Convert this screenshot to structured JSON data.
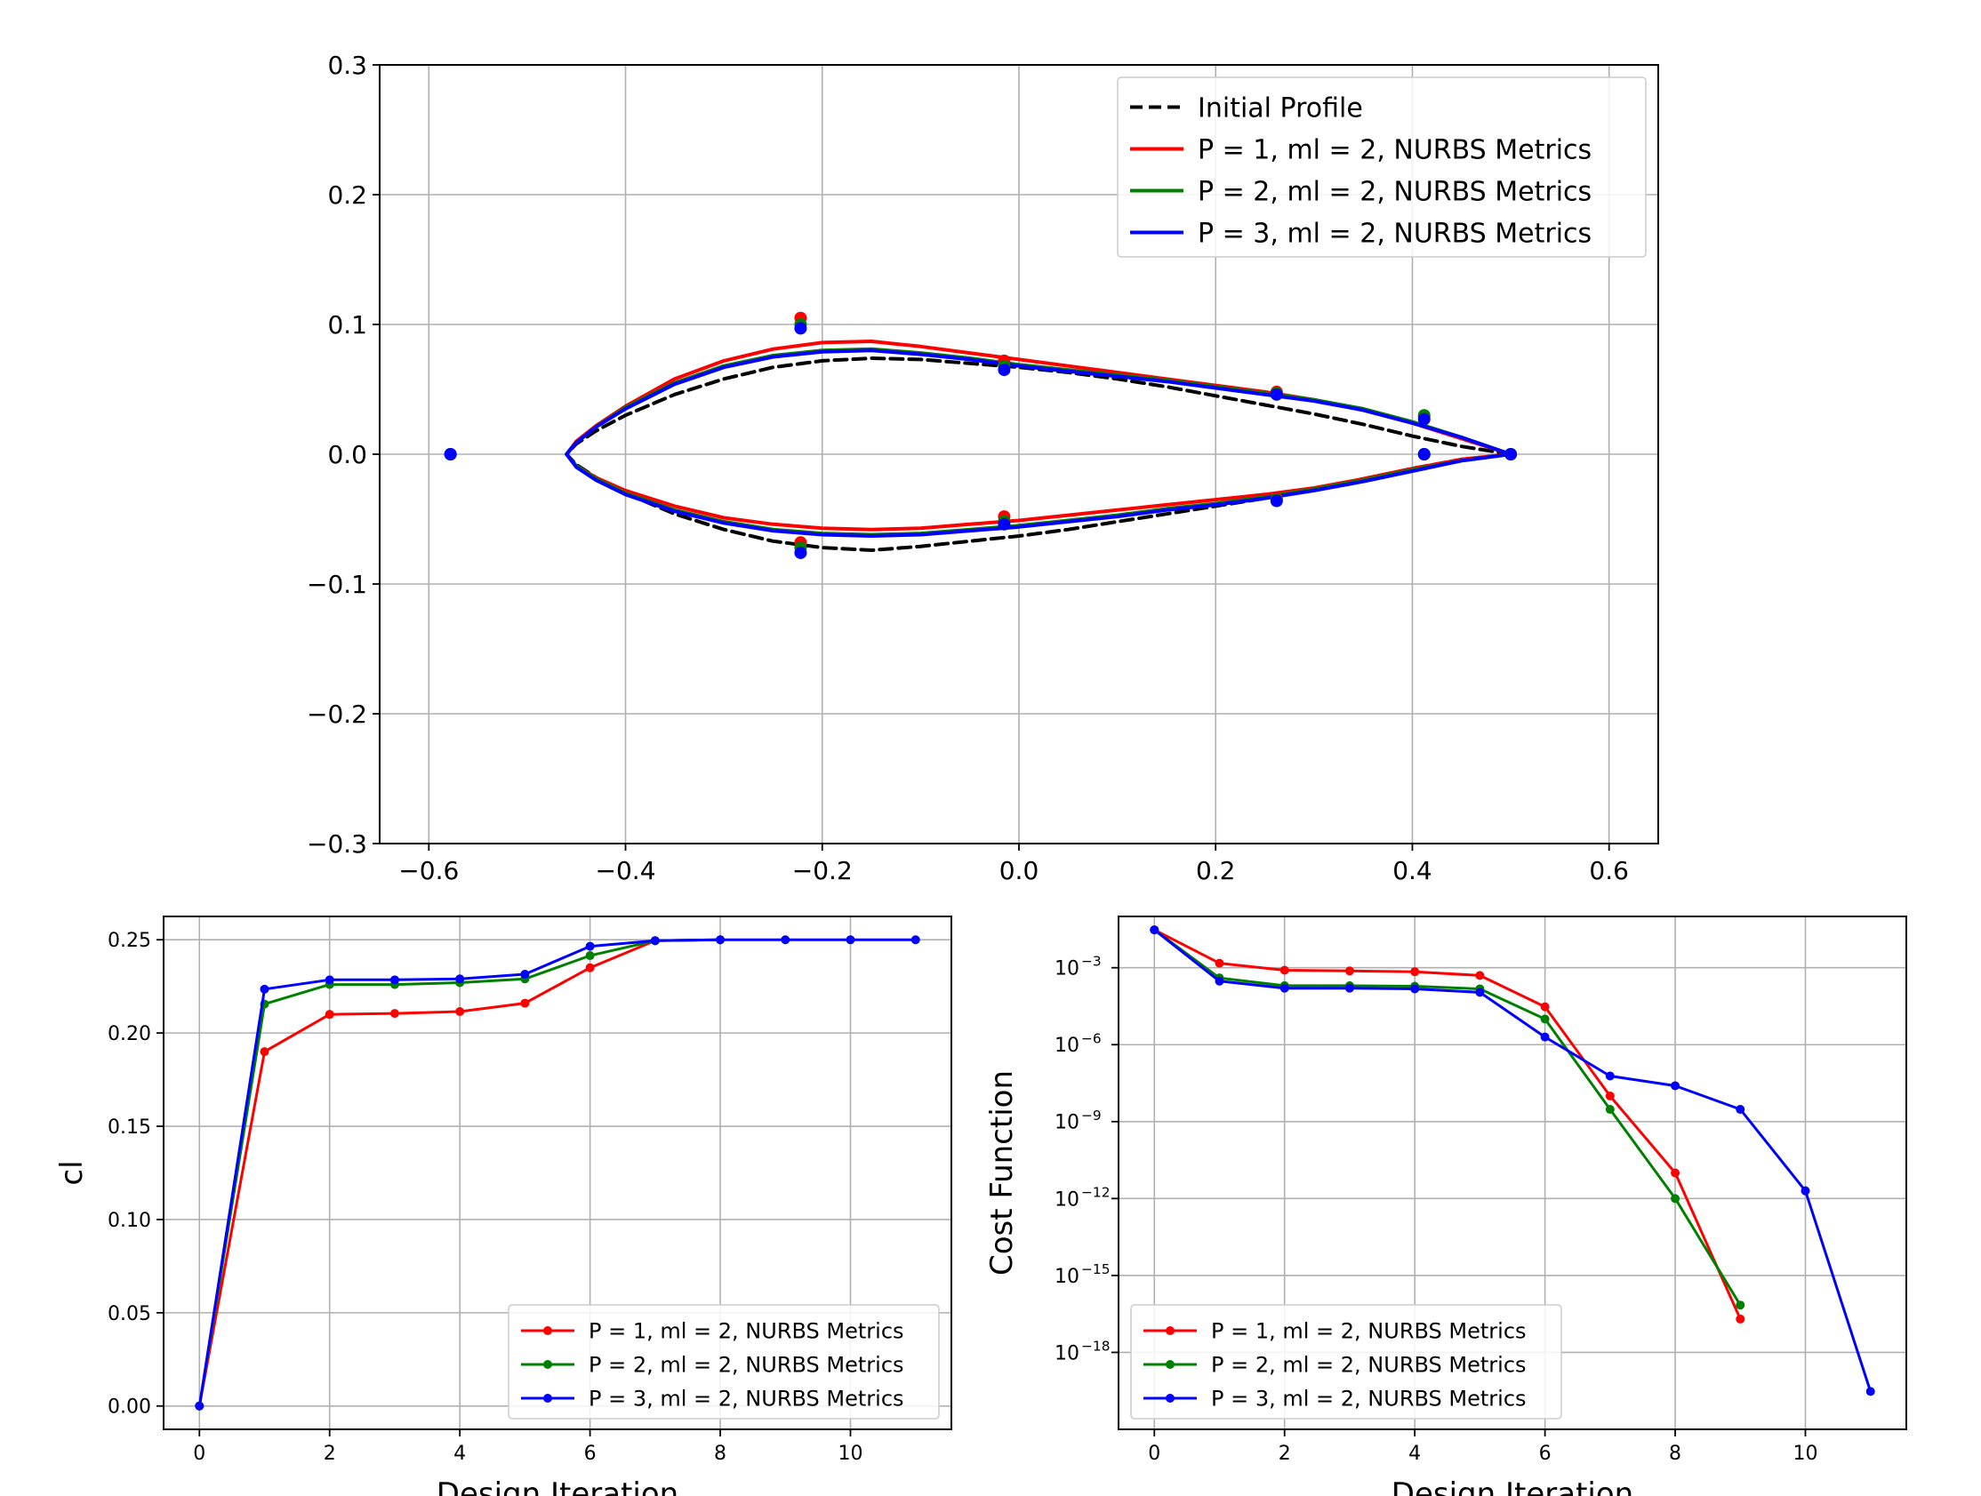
{
  "chart_data": [
    {
      "id": "airfoil",
      "type": "line",
      "title": "",
      "xlabel": "",
      "ylabel": "",
      "xlim": [
        -0.65,
        0.65
      ],
      "ylim": [
        -0.3,
        0.3
      ],
      "xticks": [
        -0.6,
        -0.4,
        -0.2,
        0.0,
        0.2,
        0.4,
        0.6
      ],
      "xtick_labels": [
        "−0.6",
        "−0.4",
        "−0.2",
        "0.0",
        "0.2",
        "0.4",
        "0.6"
      ],
      "yticks": [
        -0.3,
        -0.2,
        -0.1,
        0.0,
        0.1,
        0.2,
        0.3
      ],
      "ytick_labels": [
        "−0.3",
        "−0.2",
        "−0.1",
        "0.0",
        "0.1",
        "0.2",
        "0.3"
      ],
      "grid": true,
      "legend_position": "top-right",
      "series": [
        {
          "name": "Initial Profile",
          "color": "#000000",
          "dash": true,
          "x": [
            0.5,
            0.45,
            0.4,
            0.35,
            0.3,
            0.25,
            0.2,
            0.15,
            0.1,
            0.05,
            0.0,
            -0.05,
            -0.1,
            -0.15,
            -0.2,
            -0.25,
            -0.3,
            -0.35,
            -0.4,
            -0.43,
            -0.45,
            -0.46,
            -0.45,
            -0.43,
            -0.4,
            -0.35,
            -0.3,
            -0.25,
            -0.2,
            -0.15,
            -0.1,
            -0.05,
            0.0,
            0.05,
            0.1,
            0.15,
            0.2,
            0.25,
            0.3,
            0.35,
            0.4,
            0.45,
            0.5
          ],
          "y": [
            0.0,
            0.006,
            0.014,
            0.023,
            0.031,
            0.038,
            0.045,
            0.052,
            0.058,
            0.063,
            0.067,
            0.07,
            0.073,
            0.074,
            0.072,
            0.067,
            0.058,
            0.046,
            0.03,
            0.018,
            0.008,
            0.0,
            -0.008,
            -0.018,
            -0.03,
            -0.046,
            -0.058,
            -0.067,
            -0.072,
            -0.074,
            -0.071,
            -0.067,
            -0.063,
            -0.058,
            -0.052,
            -0.046,
            -0.04,
            -0.034,
            -0.027,
            -0.019,
            -0.011,
            -0.004,
            0.0
          ]
        },
        {
          "name": "P = 1, ml = 2, NURBS Metrics",
          "color": "#ff0000",
          "dash": false,
          "x": [
            0.5,
            0.45,
            0.4,
            0.35,
            0.3,
            0.25,
            0.2,
            0.15,
            0.1,
            0.05,
            0.0,
            -0.05,
            -0.1,
            -0.15,
            -0.2,
            -0.25,
            -0.3,
            -0.35,
            -0.4,
            -0.43,
            -0.45,
            -0.46,
            -0.45,
            -0.43,
            -0.4,
            -0.35,
            -0.3,
            -0.25,
            -0.2,
            -0.15,
            -0.1,
            -0.05,
            0.0,
            0.05,
            0.1,
            0.15,
            0.2,
            0.25,
            0.3,
            0.35,
            0.4,
            0.45,
            0.5
          ],
          "y": [
            0.0,
            0.012,
            0.024,
            0.034,
            0.042,
            0.048,
            0.053,
            0.058,
            0.063,
            0.068,
            0.073,
            0.078,
            0.083,
            0.087,
            0.086,
            0.081,
            0.072,
            0.058,
            0.037,
            0.022,
            0.01,
            0.0,
            -0.009,
            -0.018,
            -0.028,
            -0.04,
            -0.049,
            -0.054,
            -0.057,
            -0.058,
            -0.057,
            -0.054,
            -0.051,
            -0.047,
            -0.043,
            -0.039,
            -0.035,
            -0.031,
            -0.026,
            -0.019,
            -0.011,
            -0.004,
            0.0
          ]
        },
        {
          "name": "P = 2, ml = 2, NURBS Metrics",
          "color": "#008000",
          "dash": false,
          "x": [
            0.5,
            0.45,
            0.4,
            0.35,
            0.3,
            0.25,
            0.2,
            0.15,
            0.1,
            0.05,
            0.0,
            -0.05,
            -0.1,
            -0.15,
            -0.2,
            -0.25,
            -0.3,
            -0.35,
            -0.4,
            -0.43,
            -0.45,
            -0.46,
            -0.45,
            -0.43,
            -0.4,
            -0.35,
            -0.3,
            -0.25,
            -0.2,
            -0.15,
            -0.1,
            -0.05,
            0.0,
            0.05,
            0.1,
            0.15,
            0.2,
            0.25,
            0.3,
            0.35,
            0.4,
            0.45,
            0.5
          ],
          "y": [
            0.0,
            0.013,
            0.025,
            0.035,
            0.042,
            0.047,
            0.052,
            0.057,
            0.061,
            0.065,
            0.069,
            0.074,
            0.078,
            0.081,
            0.08,
            0.076,
            0.068,
            0.055,
            0.036,
            0.021,
            0.009,
            0.0,
            -0.009,
            -0.019,
            -0.03,
            -0.043,
            -0.052,
            -0.058,
            -0.061,
            -0.062,
            -0.061,
            -0.058,
            -0.055,
            -0.051,
            -0.047,
            -0.042,
            -0.038,
            -0.033,
            -0.027,
            -0.02,
            -0.012,
            -0.005,
            0.0
          ]
        },
        {
          "name": "P = 3, ml = 2, NURBS Metrics",
          "color": "#0000ff",
          "dash": false,
          "x": [
            0.5,
            0.45,
            0.4,
            0.35,
            0.3,
            0.25,
            0.2,
            0.15,
            0.1,
            0.05,
            0.0,
            -0.05,
            -0.1,
            -0.15,
            -0.2,
            -0.25,
            -0.3,
            -0.35,
            -0.4,
            -0.43,
            -0.45,
            -0.46,
            -0.45,
            -0.43,
            -0.4,
            -0.35,
            -0.3,
            -0.25,
            -0.2,
            -0.15,
            -0.1,
            -0.05,
            0.0,
            0.05,
            0.1,
            0.15,
            0.2,
            0.25,
            0.3,
            0.35,
            0.4,
            0.45,
            0.5
          ],
          "y": [
            0.0,
            0.013,
            0.024,
            0.034,
            0.041,
            0.046,
            0.051,
            0.056,
            0.06,
            0.064,
            0.068,
            0.073,
            0.077,
            0.08,
            0.079,
            0.075,
            0.067,
            0.054,
            0.035,
            0.021,
            0.009,
            0.0,
            -0.01,
            -0.02,
            -0.031,
            -0.044,
            -0.053,
            -0.059,
            -0.062,
            -0.063,
            -0.062,
            -0.059,
            -0.056,
            -0.052,
            -0.048,
            -0.043,
            -0.039,
            -0.034,
            -0.028,
            -0.021,
            -0.013,
            -0.005,
            0.0
          ]
        }
      ],
      "control_points": [
        {
          "name": "P = 1, ml = 2, NURBS Metrics",
          "color": "#ff0000",
          "x": [
            -0.578,
            -0.222,
            -0.222,
            -0.015,
            -0.015,
            0.262,
            0.262,
            0.412,
            0.412,
            0.5
          ],
          "y": [
            0.0,
            0.105,
            -0.068,
            0.072,
            -0.048,
            0.048,
            -0.034,
            0.029,
            0.0,
            0.0
          ]
        },
        {
          "name": "P = 2, ml = 2, NURBS Metrics",
          "color": "#008000",
          "x": [
            -0.578,
            -0.222,
            -0.222,
            -0.015,
            -0.015,
            0.262,
            0.262,
            0.412,
            0.412,
            0.5
          ],
          "y": [
            0.0,
            0.1,
            -0.072,
            0.068,
            -0.052,
            0.047,
            -0.035,
            0.03,
            0.0,
            0.0
          ]
        },
        {
          "name": "P = 3, ml = 2, NURBS Metrics",
          "color": "#0000ff",
          "x": [
            -0.578,
            -0.222,
            -0.222,
            -0.015,
            -0.015,
            0.262,
            0.262,
            0.412,
            0.412,
            0.5
          ],
          "y": [
            0.0,
            0.097,
            -0.076,
            0.065,
            -0.054,
            0.046,
            -0.036,
            0.027,
            0.0,
            0.0
          ]
        }
      ]
    },
    {
      "id": "cl",
      "type": "line",
      "title": "",
      "xlabel": "Design Iteration",
      "ylabel": "cl",
      "xlim": [
        -0.55,
        11.55
      ],
      "ylim": [
        -0.0125,
        0.2625
      ],
      "xticks": [
        0,
        2,
        4,
        6,
        8,
        10
      ],
      "xtick_labels": [
        "0",
        "2",
        "4",
        "6",
        "8",
        "10"
      ],
      "yticks": [
        0.0,
        0.05,
        0.1,
        0.15,
        0.2,
        0.25
      ],
      "ytick_labels": [
        "0.00",
        "0.05",
        "0.10",
        "0.15",
        "0.20",
        "0.25"
      ],
      "grid": true,
      "legend_position": "bottom-right",
      "series": [
        {
          "name": "P = 1, ml = 2, NURBS Metrics",
          "color": "#ff0000",
          "x": [
            0,
            1,
            2,
            3,
            4,
            5,
            6,
            7,
            8
          ],
          "y": [
            0.0,
            0.19,
            0.21,
            0.2105,
            0.2115,
            0.216,
            0.235,
            0.2495,
            0.25
          ]
        },
        {
          "name": "P = 2, ml = 2, NURBS Metrics",
          "color": "#008000",
          "x": [
            0,
            1,
            2,
            3,
            4,
            5,
            6,
            7,
            8
          ],
          "y": [
            0.0,
            0.2155,
            0.226,
            0.226,
            0.227,
            0.229,
            0.2415,
            0.2495,
            0.25
          ]
        },
        {
          "name": "P = 3, ml = 2, NURBS Metrics",
          "color": "#0000ff",
          "x": [
            0,
            1,
            2,
            3,
            4,
            5,
            6,
            7,
            8,
            9,
            10,
            11
          ],
          "y": [
            0.0,
            0.2235,
            0.2285,
            0.2285,
            0.229,
            0.2315,
            0.2465,
            0.2495,
            0.25,
            0.25,
            0.25,
            0.25
          ]
        }
      ]
    },
    {
      "id": "cost",
      "type": "line",
      "title": "",
      "xlabel": "Design Iteration",
      "ylabel": "Cost Function",
      "log_y": true,
      "xlim": [
        -0.55,
        11.55
      ],
      "ylim": [
        1e-21,
        0.1
      ],
      "xticks": [
        0,
        2,
        4,
        6,
        8,
        10
      ],
      "xtick_labels": [
        "0",
        "2",
        "4",
        "6",
        "8",
        "10"
      ],
      "yticks": [
        1e-18,
        1e-15,
        1e-12,
        1e-09,
        1e-06,
        0.001
      ],
      "ytick_labels": [
        "10",
        "10",
        "10",
        "10",
        "10",
        "10"
      ],
      "ytick_exponents": [
        "−18",
        "−15",
        "−12",
        "−9",
        "−6",
        "−3"
      ],
      "grid": true,
      "legend_position": "bottom-left",
      "series": [
        {
          "name": "P = 1, ml = 2, NURBS Metrics",
          "color": "#ff0000",
          "x": [
            0,
            1,
            2,
            3,
            4,
            5,
            6,
            7,
            8,
            9
          ],
          "y": [
            0.03,
            0.0015,
            0.0008,
            0.00075,
            0.0007,
            0.0005,
            3e-05,
            1e-08,
            1e-11,
            2e-17
          ]
        },
        {
          "name": "P = 2, ml = 2, NURBS Metrics",
          "color": "#008000",
          "x": [
            0,
            1,
            2,
            3,
            4,
            5,
            6,
            7,
            8,
            9
          ],
          "y": [
            0.03,
            0.0004,
            0.0002,
            0.0002,
            0.00019,
            0.00015,
            1e-05,
            3e-09,
            1e-12,
            7e-17
          ]
        },
        {
          "name": "P = 3, ml = 2, NURBS Metrics",
          "color": "#0000ff",
          "x": [
            0,
            1,
            2,
            3,
            4,
            5,
            6,
            7,
            8,
            9,
            10,
            11
          ],
          "y": [
            0.03,
            0.0003,
            0.00016,
            0.00016,
            0.00015,
            0.00011,
            2e-06,
            6e-08,
            2.5e-08,
            3e-09,
            2e-12,
            3e-20
          ]
        }
      ]
    }
  ]
}
